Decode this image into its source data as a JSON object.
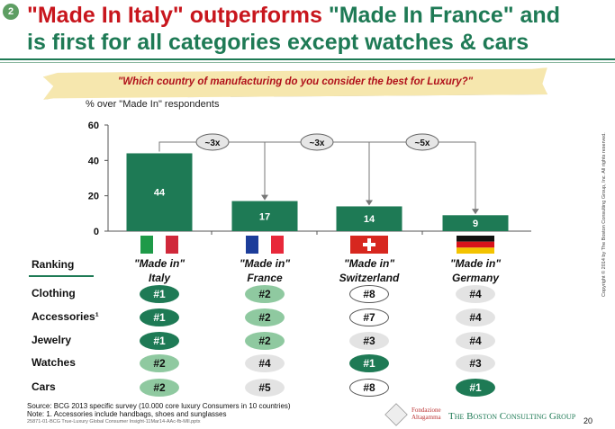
{
  "header": {
    "section_number": "2",
    "title_part1": "\"Made In Italy\" outperforms ",
    "title_part2": "\"Made In France\" and",
    "title_line2": "is first for all categories except watches & cars"
  },
  "question": "\"Which country of manufacturing do you consider the best for Luxury?\"",
  "colors": {
    "dark_green": "#1e7a55",
    "light_green": "#8fc9a0",
    "grey": "#e3e3e3",
    "red": "#c8161d"
  },
  "chart_data": {
    "type": "bar",
    "ylabel": "% over \"Made In\" respondents",
    "ylim": [
      0,
      60
    ],
    "yticks": [
      "0",
      "20",
      "40",
      "60"
    ],
    "categories": [
      "\"Made in\" Italy",
      "\"Made in\" France",
      "\"Made in\" Switzerland",
      "\"Made in\" Germany"
    ],
    "values": [
      44,
      17,
      14,
      9
    ],
    "value_labels": [
      "44",
      "17",
      "14",
      "9"
    ],
    "annotations": [
      {
        "from": "Italy",
        "to": "France",
        "label": "~3x"
      },
      {
        "from": "Italy",
        "to": "Switzerland",
        "label": "~3x"
      },
      {
        "from": "Italy",
        "to": "Germany",
        "label": "~5x"
      }
    ],
    "bar_color": "#1e7a55"
  },
  "columns": [
    {
      "line1": "\"Made in\"",
      "line2": "Italy",
      "flag": "italy-flag"
    },
    {
      "line1": "\"Made in\"",
      "line2": "France",
      "flag": "france-flag"
    },
    {
      "line1": "\"Made in\"",
      "line2": "Switzerland",
      "flag": "switzerland-flag"
    },
    {
      "line1": "\"Made in\"",
      "line2": "Germany",
      "flag": "germany-flag"
    }
  ],
  "ranking": {
    "header": "Ranking",
    "rows": [
      {
        "label": "Clothing",
        "ranks": [
          "#1",
          "#2",
          "#8",
          "#4"
        ]
      },
      {
        "label": "Accessories¹",
        "ranks": [
          "#1",
          "#2",
          "#7",
          "#4"
        ]
      },
      {
        "label": "Jewelry",
        "ranks": [
          "#1",
          "#2",
          "#3",
          "#4"
        ]
      },
      {
        "label": "Watches",
        "ranks": [
          "#2",
          "#4",
          "#1",
          "#3"
        ]
      },
      {
        "label": "Cars",
        "ranks": [
          "#2",
          "#5",
          "#8",
          "#1"
        ]
      }
    ]
  },
  "footer": {
    "source": "Source: BCG 2013 specific survey (10.000 core luxury Consumers in 10 countries)",
    "note": "Note: 1. Accessories include handbags, shoes and sunglasses",
    "file": "25871-01-BCG True-Luxury Global Consumer Insight-11Mar14-AAc-fb-MIl.pptx",
    "partner": "Fondazione Altagamma",
    "company": "The Boston Consulting Group",
    "page": "20",
    "copyright": "Copyright © 2014 by The Boston Consulting Group, Inc. All rights reserved."
  }
}
